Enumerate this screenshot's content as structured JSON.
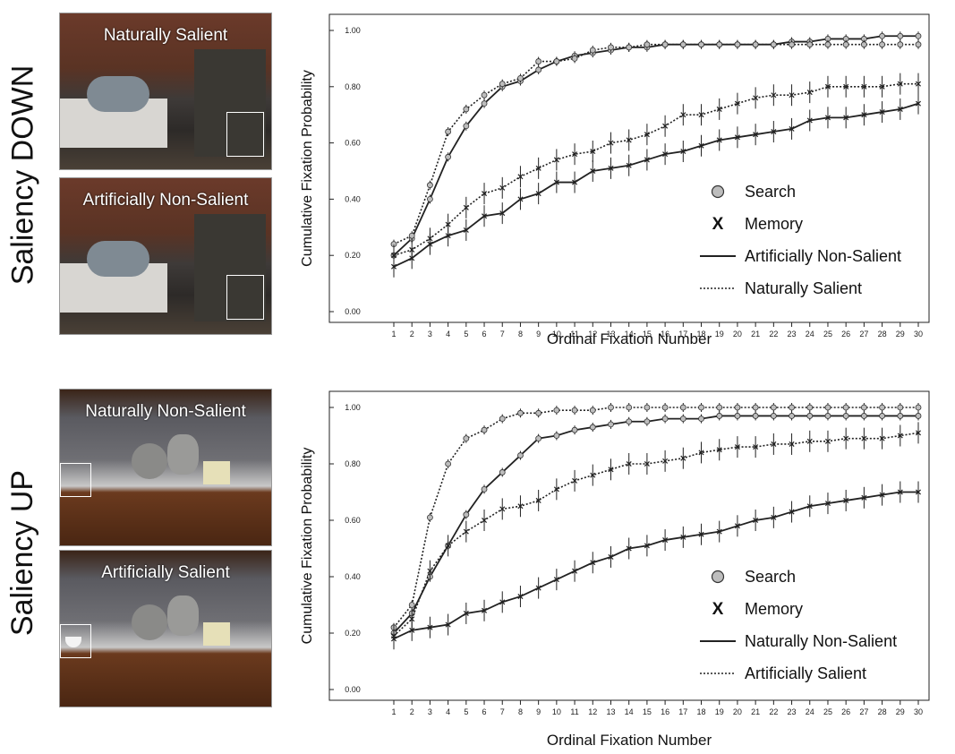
{
  "rows": [
    {
      "label": "Saliency DOWN",
      "photos": [
        {
          "caption": "Naturally Salient"
        },
        {
          "caption": "Artificially Non-Salient"
        }
      ]
    },
    {
      "label": "Saliency UP",
      "photos": [
        {
          "caption": "Naturally Non-Salient"
        },
        {
          "caption": "Artificially Salient"
        }
      ]
    }
  ],
  "chart_data": [
    {
      "type": "line",
      "title": "",
      "xlabel": "Ordinal Fixation Number",
      "ylabel": "Cumulative Fixation Probability",
      "ylim": [
        0,
        1
      ],
      "yticks": [
        "0.00",
        "0.20",
        "0.40",
        "0.60",
        "0.80",
        "1.00"
      ],
      "x": [
        1,
        2,
        3,
        4,
        5,
        6,
        7,
        8,
        9,
        10,
        11,
        12,
        13,
        14,
        15,
        16,
        17,
        18,
        19,
        20,
        21,
        22,
        23,
        24,
        25,
        26,
        27,
        28,
        29,
        30
      ],
      "legend": {
        "placement": "bottom-right",
        "entries": [
          {
            "label": "Search",
            "kind": "circle"
          },
          {
            "label": "Memory",
            "kind": "x"
          },
          {
            "label": "Artificially Non-Salient",
            "kind": "solid"
          },
          {
            "label": "Naturally Salient",
            "kind": "dotted"
          }
        ]
      },
      "series": [
        {
          "task": "Search",
          "condition": "Artificially Non-Salient",
          "marker": "circle",
          "dash": "solid",
          "values": [
            0.2,
            0.26,
            0.4,
            0.55,
            0.66,
            0.74,
            0.8,
            0.82,
            0.86,
            0.89,
            0.91,
            0.92,
            0.93,
            0.94,
            0.94,
            0.95,
            0.95,
            0.95,
            0.95,
            0.95,
            0.95,
            0.95,
            0.96,
            0.96,
            0.97,
            0.97,
            0.97,
            0.98,
            0.98,
            0.98
          ]
        },
        {
          "task": "Search",
          "condition": "Naturally Salient",
          "marker": "circle",
          "dash": "dotted",
          "values": [
            0.24,
            0.27,
            0.45,
            0.64,
            0.72,
            0.77,
            0.81,
            0.83,
            0.89,
            0.89,
            0.9,
            0.93,
            0.94,
            0.94,
            0.95,
            0.95,
            0.95,
            0.95,
            0.95,
            0.95,
            0.95,
            0.95,
            0.95,
            0.95,
            0.95,
            0.95,
            0.95,
            0.95,
            0.95,
            0.95
          ]
        },
        {
          "task": "Memory",
          "condition": "Artificially Non-Salient",
          "marker": "x",
          "dash": "solid",
          "values": [
            0.16,
            0.19,
            0.24,
            0.27,
            0.29,
            0.34,
            0.35,
            0.4,
            0.42,
            0.46,
            0.46,
            0.5,
            0.51,
            0.52,
            0.54,
            0.56,
            0.57,
            0.59,
            0.61,
            0.62,
            0.63,
            0.64,
            0.65,
            0.68,
            0.69,
            0.69,
            0.7,
            0.71,
            0.72,
            0.74
          ]
        },
        {
          "task": "Memory",
          "condition": "Naturally Salient",
          "marker": "x",
          "dash": "dotted",
          "values": [
            0.2,
            0.22,
            0.26,
            0.31,
            0.37,
            0.42,
            0.44,
            0.48,
            0.51,
            0.54,
            0.56,
            0.57,
            0.6,
            0.61,
            0.63,
            0.66,
            0.7,
            0.7,
            0.72,
            0.74,
            0.76,
            0.77,
            0.77,
            0.78,
            0.8,
            0.8,
            0.8,
            0.8,
            0.81,
            0.81
          ]
        }
      ]
    },
    {
      "type": "line",
      "title": "",
      "xlabel": "Ordinal Fixation Number",
      "ylabel": "Cumulative Fixation Probability",
      "ylim": [
        0,
        1
      ],
      "yticks": [
        "0.00",
        "0.20",
        "0.40",
        "0.60",
        "0.80",
        "1.00"
      ],
      "x": [
        1,
        2,
        3,
        4,
        5,
        6,
        7,
        8,
        9,
        10,
        11,
        12,
        13,
        14,
        15,
        16,
        17,
        18,
        19,
        20,
        21,
        22,
        23,
        24,
        25,
        26,
        27,
        28,
        29,
        30
      ],
      "legend": {
        "placement": "bottom-right",
        "entries": [
          {
            "label": "Search",
            "kind": "circle"
          },
          {
            "label": "Memory",
            "kind": "x"
          },
          {
            "label": "Naturally Non-Salient",
            "kind": "solid"
          },
          {
            "label": "Artificially Salient",
            "kind": "dotted"
          }
        ]
      },
      "series": [
        {
          "task": "Search",
          "condition": "Naturally Non-Salient",
          "marker": "circle",
          "dash": "solid",
          "values": [
            0.2,
            0.27,
            0.4,
            0.51,
            0.62,
            0.71,
            0.77,
            0.83,
            0.89,
            0.9,
            0.92,
            0.93,
            0.94,
            0.95,
            0.95,
            0.96,
            0.96,
            0.96,
            0.97,
            0.97,
            0.97,
            0.97,
            0.97,
            0.97,
            0.97,
            0.97,
            0.97,
            0.97,
            0.97,
            0.97
          ]
        },
        {
          "task": "Search",
          "condition": "Artificially Salient",
          "marker": "circle",
          "dash": "dotted",
          "values": [
            0.22,
            0.3,
            0.61,
            0.8,
            0.89,
            0.92,
            0.96,
            0.98,
            0.98,
            0.99,
            0.99,
            0.99,
            1.0,
            1.0,
            1.0,
            1.0,
            1.0,
            1.0,
            1.0,
            1.0,
            1.0,
            1.0,
            1.0,
            1.0,
            1.0,
            1.0,
            1.0,
            1.0,
            1.0,
            1.0
          ]
        },
        {
          "task": "Memory",
          "condition": "Naturally Non-Salient",
          "marker": "x",
          "dash": "solid",
          "values": [
            0.18,
            0.21,
            0.22,
            0.23,
            0.27,
            0.28,
            0.31,
            0.33,
            0.36,
            0.39,
            0.42,
            0.45,
            0.47,
            0.5,
            0.51,
            0.53,
            0.54,
            0.55,
            0.56,
            0.58,
            0.6,
            0.61,
            0.63,
            0.65,
            0.66,
            0.67,
            0.68,
            0.69,
            0.7,
            0.7
          ]
        },
        {
          "task": "Memory",
          "condition": "Artificially Salient",
          "marker": "x",
          "dash": "dotted",
          "values": [
            0.19,
            0.25,
            0.42,
            0.51,
            0.56,
            0.6,
            0.64,
            0.65,
            0.67,
            0.71,
            0.74,
            0.76,
            0.78,
            0.8,
            0.8,
            0.81,
            0.82,
            0.84,
            0.85,
            0.86,
            0.86,
            0.87,
            0.87,
            0.88,
            0.88,
            0.89,
            0.89,
            0.89,
            0.9,
            0.91
          ]
        }
      ]
    }
  ]
}
